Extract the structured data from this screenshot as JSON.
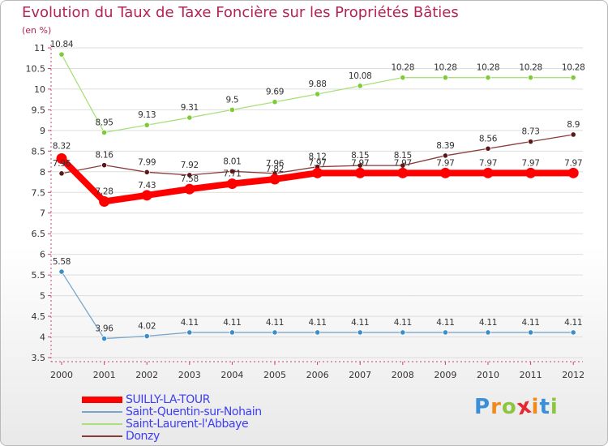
{
  "title": "Evolution du Taux de Taxe Foncière sur les Propriétés Bâties",
  "unit_label": "(en %)",
  "brand": {
    "letters": [
      "P",
      "r",
      "o",
      "x",
      "i",
      "t",
      "i"
    ],
    "colors": [
      "#3a8fd6",
      "#f18a1c",
      "#8cc63f",
      "#e8262f",
      "#f18a1c",
      "#3a8fd6",
      "#8cc63f"
    ]
  },
  "chart_data": {
    "type": "line",
    "title": "Evolution du Taux de Taxe Foncière sur les Propriétés Bâties",
    "xlabel": "",
    "ylabel": "(en %)",
    "ylim": [
      3.5,
      11
    ],
    "yticks": [
      3.5,
      4,
      4.5,
      5,
      5.5,
      6,
      6.5,
      7,
      7.5,
      8,
      8.5,
      9,
      9.5,
      10,
      10.5,
      11
    ],
    "ytick_labels": [
      "3.5",
      "4",
      "4.5",
      "5",
      "5.5",
      "6",
      "6.5",
      "7",
      "7.5",
      "8",
      "8.5",
      "9",
      "9.5",
      "10",
      "10.5",
      "11"
    ],
    "categories": [
      "2000",
      "2001",
      "2002",
      "2003",
      "2004",
      "2005",
      "2006",
      "2007",
      "2008",
      "2009",
      "2010",
      "2011",
      "2012"
    ],
    "legend_position": "bottom-left",
    "series": [
      {
        "name": "SUILLY-LA-TOUR",
        "color": "#ff0000",
        "marker_color": "#ff0000",
        "values": [
          8.32,
          7.28,
          7.43,
          7.58,
          7.71,
          7.82,
          7.97,
          7.97,
          7.97,
          7.97,
          7.97,
          7.97,
          7.97
        ],
        "labels": [
          "8.32",
          "7.28",
          "7.43",
          "7.58",
          "7.71",
          "7.82",
          "7.97",
          "7.97",
          "7.97",
          "7.97",
          "7.97",
          "7.97",
          "7.97"
        ]
      },
      {
        "name": "Saint-Quentin-sur-Nohain",
        "color": "#7aa6cc",
        "marker_color": "#3b8ec9",
        "values": [
          5.58,
          3.96,
          4.02,
          4.11,
          4.11,
          4.11,
          4.11,
          4.11,
          4.11,
          4.11,
          4.11,
          4.11,
          4.11
        ],
        "labels": [
          "5.58",
          "3.96",
          "4.02",
          "4.11",
          "4.11",
          "4.11",
          "4.11",
          "4.11",
          "4.11",
          "4.11",
          "4.11",
          "4.11",
          "4.11"
        ]
      },
      {
        "name": "Saint-Laurent-l'Abbaye",
        "color": "#a9e07a",
        "marker_color": "#7dcc36",
        "values": [
          10.84,
          8.95,
          9.13,
          9.31,
          9.5,
          9.69,
          9.88,
          10.08,
          10.28,
          10.28,
          10.28,
          10.28,
          10.28
        ],
        "labels": [
          "10.84",
          "8.95",
          "9.13",
          "9.31",
          "9.5",
          "9.69",
          "9.88",
          "10.08",
          "10.28",
          "10.28",
          "10.28",
          "10.28",
          "10.28"
        ]
      },
      {
        "name": "Donzy",
        "color": "#8a3a3a",
        "marker_color": "#5c1717",
        "values": [
          7.96,
          8.16,
          7.99,
          7.92,
          8.01,
          7.96,
          8.12,
          8.15,
          8.15,
          8.39,
          8.56,
          8.73,
          8.9
        ],
        "labels": [
          "7.96",
          "8.16",
          "7.99",
          "7.92",
          "8.01",
          "7.96",
          "8.12",
          "8.15",
          "8.15",
          "8.39",
          "8.56",
          "8.73",
          "8.9"
        ]
      }
    ]
  }
}
